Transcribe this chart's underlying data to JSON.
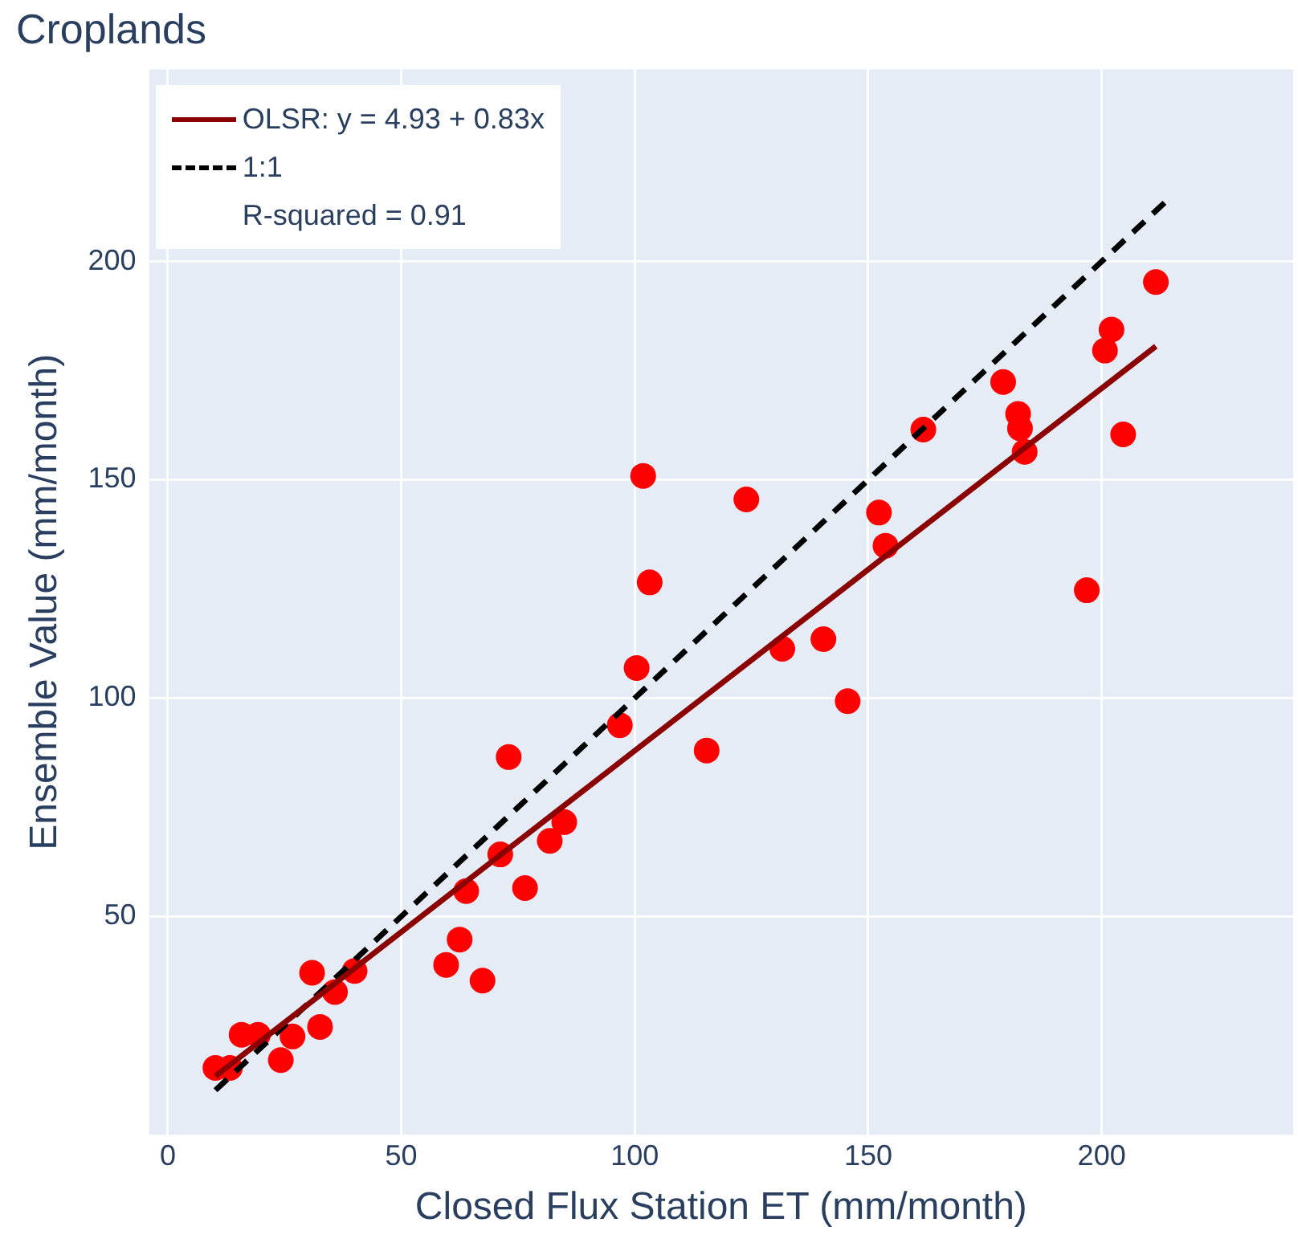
{
  "chart_data": {
    "type": "scatter",
    "title": "Croplands",
    "xlabel": "Closed Flux Station ET (mm/month)",
    "ylabel": "Ensemble Value (mm/month)",
    "xlim": [
      -4,
      241
    ],
    "xticks": [
      0,
      50,
      100,
      150,
      200
    ],
    "ylim": [
      0,
      244
    ],
    "yticks": [
      50,
      100,
      150,
      200
    ],
    "grid": true,
    "legend": "top left",
    "annotations": [
      "R-squared = 0.91"
    ],
    "series": [
      {
        "type": "scatter",
        "color": "#ff0000",
        "marker": "circle",
        "x": [
          10.2,
          13.3,
          15.8,
          19.3,
          24.2,
          26.7,
          32.6,
          30.9,
          35.8,
          40,
          59.6,
          62.5,
          67.4,
          63.9,
          71.2,
          76.5,
          81.8,
          84.9,
          73,
          101.8,
          123.9,
          103.2,
          100.4,
          96.8,
          115.4,
          131.6,
          140.4,
          145.6,
          152.3,
          153.7,
          211.6,
          202.1,
          200.7,
          178.9,
          182.1,
          182.5,
          183.5,
          161.8,
          204.6,
          196.8
        ],
        "values": [
          15.3,
          15.3,
          22.9,
          22.9,
          17.1,
          22.5,
          24.7,
          37.1,
          32.7,
          37.5,
          38.9,
          44.7,
          35.3,
          55.8,
          64.2,
          56.5,
          67.3,
          71.6,
          86.5,
          150.9,
          145.5,
          126.5,
          106.9,
          93.8,
          88,
          111.3,
          113.5,
          99.3,
          142.5,
          134.9,
          195.3,
          184.4,
          179.6,
          172.4,
          165.1,
          161.8,
          156.4,
          161.5,
          160.4,
          124.7
        ]
      },
      {
        "type": "line",
        "name": "OLSR: y = 4.93 + 0.83x",
        "color": "#8b0000",
        "line_style": "solid",
        "x": [
          10.2,
          211.6
        ],
        "values": [
          13.4,
          180.6
        ]
      },
      {
        "type": "line",
        "name": "1:1",
        "color": "#000000",
        "line_style": "dashed",
        "x": [
          10.2,
          214.4
        ],
        "values": [
          10.2,
          214.4
        ]
      }
    ]
  }
}
